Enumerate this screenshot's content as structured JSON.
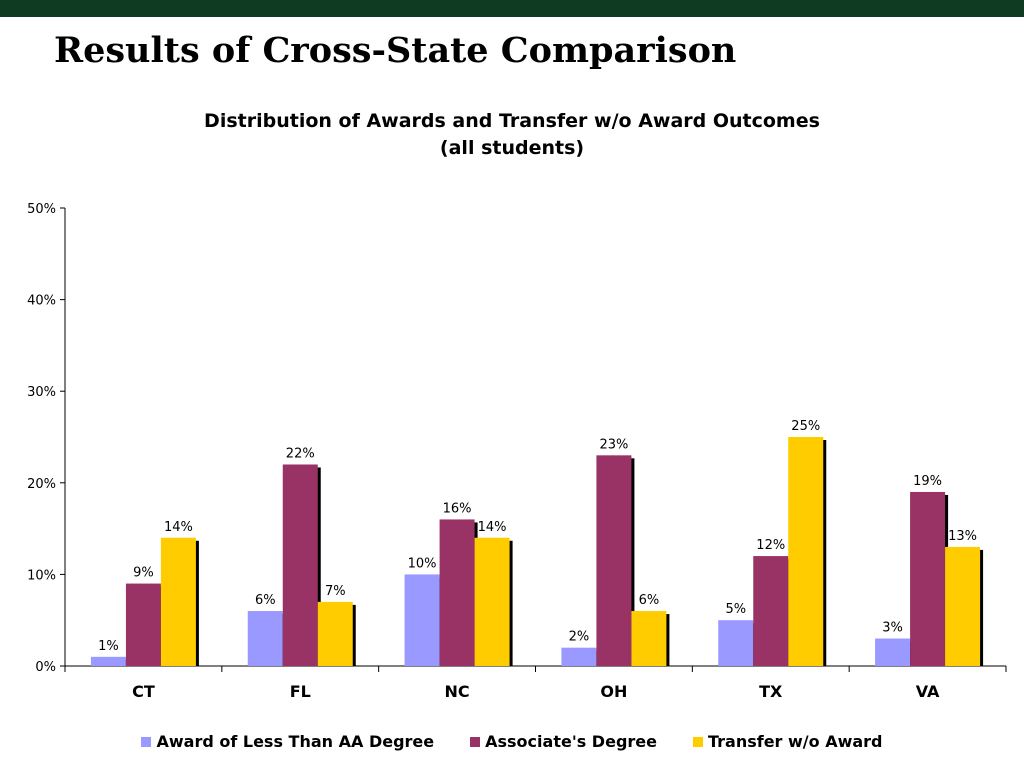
{
  "slide": {
    "title": "Results of Cross-State Comparison"
  },
  "chart_data": {
    "type": "bar",
    "title": "Distribution of Awards and Transfer w/o Award Outcomes",
    "subtitle": "(all students)",
    "categories": [
      "CT",
      "FL",
      "NC",
      "OH",
      "TX",
      "VA"
    ],
    "series": [
      {
        "name": "Award of Less Than AA Degree",
        "color": "#9999ff",
        "values": [
          1,
          6,
          10,
          2,
          5,
          3
        ],
        "labels": [
          "1%",
          "6%",
          "10%",
          "2%",
          "5%",
          "3%"
        ]
      },
      {
        "name": "Associate's Degree",
        "color": "#993366",
        "values": [
          9,
          22,
          16,
          23,
          12,
          19
        ],
        "labels": [
          "9%",
          "22%",
          "16%",
          "23%",
          "12%",
          "19%"
        ]
      },
      {
        "name": "Transfer w/o Award",
        "color": "#ffcc00",
        "values": [
          14,
          7,
          14,
          6,
          25,
          13
        ],
        "labels": [
          "14%",
          "7%",
          "14%",
          "6%",
          "25%",
          "13%"
        ]
      }
    ],
    "ylim": [
      0,
      50
    ],
    "yticks": [
      0,
      10,
      20,
      30,
      40,
      50
    ],
    "ytick_labels": [
      "0%",
      "10%",
      "20%",
      "30%",
      "40%",
      "50%"
    ],
    "grid": false,
    "legend_position": "bottom"
  }
}
